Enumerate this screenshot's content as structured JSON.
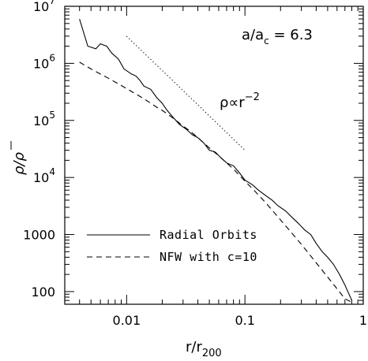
{
  "chart_data": {
    "type": "line",
    "x_scale": "log",
    "y_scale": "log",
    "xlim": [
      0.003,
      1
    ],
    "ylim": [
      60,
      10000000
    ],
    "x_ticks": [
      {
        "value": 0.01,
        "label": "0.01"
      },
      {
        "value": 0.1,
        "label": "0.1"
      },
      {
        "value": 1,
        "label": "1"
      }
    ],
    "y_ticks": [
      {
        "value": 100,
        "mantissa": "100",
        "exp": ""
      },
      {
        "value": 1000,
        "mantissa": "1000",
        "exp": ""
      },
      {
        "value": 10000,
        "mantissa": "10",
        "exp": "4"
      },
      {
        "value": 100000,
        "mantissa": "10",
        "exp": "5"
      },
      {
        "value": 1000000,
        "mantissa": "10",
        "exp": "6"
      },
      {
        "value": 10000000,
        "mantissa": "10",
        "exp": "7"
      }
    ],
    "xlabel": {
      "main": "r/r",
      "sub": "200"
    },
    "ylabel": {
      "main": "ρ/",
      "bar": "ρ"
    },
    "annotation_ratio": {
      "main": "a/a",
      "sub": "c",
      "rest": " = 6.3"
    },
    "annotation_slope": {
      "main": "ρ∝r",
      "sup": "−2"
    },
    "series": [
      {
        "name": "Radial Orbits",
        "style": "solid",
        "x": [
          0.004,
          0.0047,
          0.0055,
          0.006,
          0.0068,
          0.0075,
          0.0085,
          0.0095,
          0.011,
          0.012,
          0.013,
          0.014,
          0.016,
          0.018,
          0.02,
          0.022,
          0.025,
          0.028,
          0.032,
          0.036,
          0.04,
          0.045,
          0.05,
          0.056,
          0.063,
          0.07,
          0.08,
          0.09,
          0.1,
          0.115,
          0.13,
          0.15,
          0.17,
          0.19,
          0.22,
          0.25,
          0.28,
          0.32,
          0.36,
          0.4,
          0.45,
          0.5,
          0.56,
          0.63,
          0.7,
          0.8
        ],
        "y": [
          6000000,
          2000000,
          1800000,
          2200000,
          2000000,
          1500000,
          1200000,
          800000,
          650000,
          600000,
          500000,
          400000,
          350000,
          250000,
          200000,
          150000,
          110000,
          85000,
          70000,
          56000,
          50000,
          40000,
          30000,
          28000,
          22000,
          18000,
          16000,
          12000,
          9000,
          7500,
          6000,
          4800,
          4000,
          3200,
          2600,
          2000,
          1600,
          1200,
          1000,
          700,
          500,
          400,
          300,
          200,
          130,
          70
        ]
      },
      {
        "name": "NFW with c=10",
        "style": "dashed",
        "x": [
          0.004,
          0.005,
          0.006,
          0.007,
          0.008,
          0.009,
          0.01,
          0.012,
          0.014,
          0.016,
          0.018,
          0.02,
          0.025,
          0.03,
          0.035,
          0.04,
          0.05,
          0.06,
          0.07,
          0.08,
          0.1,
          0.12,
          0.15,
          0.2,
          0.25,
          0.3,
          0.4,
          0.5,
          0.6,
          0.7,
          0.8
        ],
        "y": [
          1050000,
          800000,
          650000,
          550000,
          470000,
          410000,
          360000,
          290000,
          240000,
          200000,
          170000,
          150000,
          108000,
          80000,
          63000,
          50000,
          33000,
          24000,
          18000,
          14000,
          8600,
          5900,
          3600,
          1800,
          1050,
          670,
          320,
          180,
          112,
          75,
          65
        ]
      },
      {
        "name": "",
        "style": "dotted",
        "x": [
          0.01,
          0.1
        ],
        "y": [
          3000000,
          30000
        ]
      }
    ],
    "legend": {
      "placement": "bottom-left"
    },
    "grid": false
  }
}
